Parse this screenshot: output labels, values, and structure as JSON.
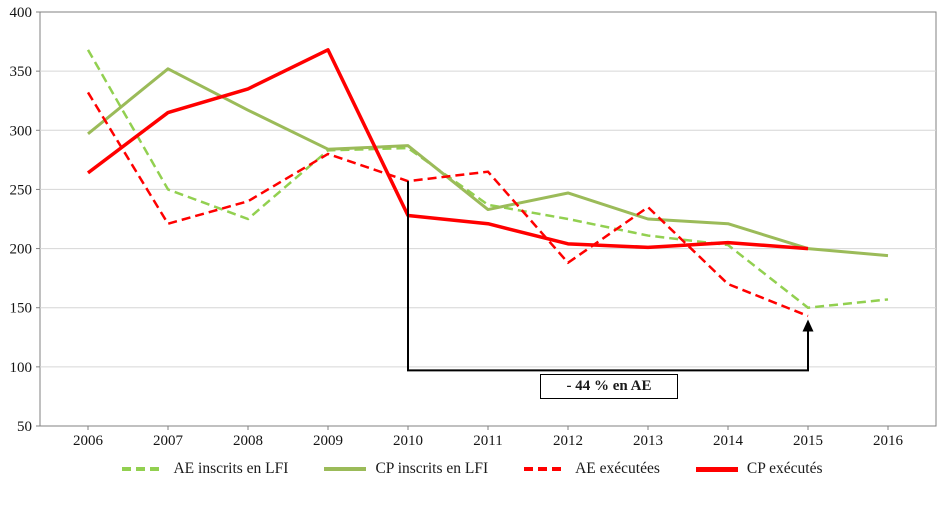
{
  "chart_data": {
    "type": "line",
    "x": [
      2006,
      2007,
      2008,
      2009,
      2010,
      2011,
      2012,
      2013,
      2014,
      2015,
      2016
    ],
    "ylim": [
      50,
      400
    ],
    "ytick_step": 50,
    "yticks": [
      50,
      100,
      150,
      200,
      250,
      300,
      350,
      400
    ],
    "grid": "horizontal",
    "legend_position": "bottom",
    "title": "",
    "xlabel": "",
    "ylabel": "",
    "series": [
      {
        "name": "AE inscrits en LFI",
        "color": "#92d050",
        "dash": "9 5",
        "width": 2.5,
        "values": [
          368,
          250,
          225,
          283,
          285,
          237,
          225,
          211,
          203,
          150,
          157
        ]
      },
      {
        "name": "CP inscrits en LFI",
        "color": "#9bbb59",
        "dash": null,
        "width": 3,
        "values": [
          297,
          352,
          317,
          284,
          287,
          233,
          247,
          225,
          221,
          200,
          194
        ]
      },
      {
        "name": "AE exécutées",
        "color": "#ff0000",
        "dash": "9 5",
        "width": 2.5,
        "values": [
          332,
          221,
          240,
          280,
          257,
          265,
          188,
          235,
          170,
          143,
          null
        ]
      },
      {
        "name": "CP exécutés",
        "color": "#ff0000",
        "dash": null,
        "width": 3.5,
        "values": [
          264,
          315,
          335,
          368,
          228,
          221,
          204,
          201,
          205,
          200,
          null
        ]
      }
    ],
    "annotation": {
      "label": "- 44 % en AE",
      "from_year": 2010,
      "to_year": 2015,
      "start_value": 257,
      "bracket_value": 97,
      "arrow_tip_value": 140
    },
    "colors": {
      "grid": "#d6d6d6",
      "border": "#808080",
      "text": "#141414",
      "annotation": "#000000"
    }
  }
}
